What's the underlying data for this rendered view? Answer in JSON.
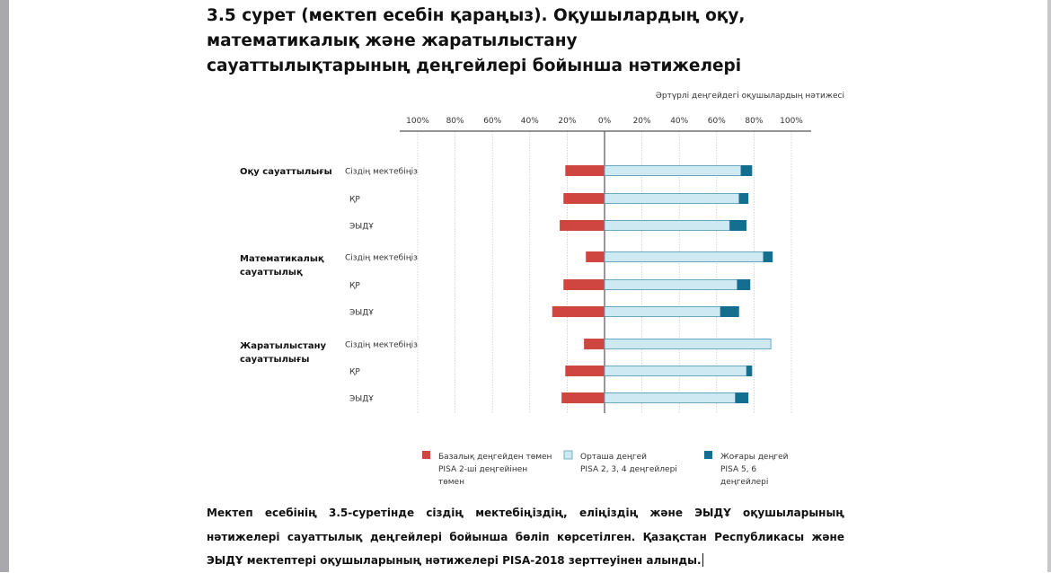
{
  "title_lines": [
    "3.5 сурет (мектеп есебін қараңыз). Оқушылардың оқу,",
    "математикалық және жаратылыстану",
    "сауаттылықтарының деңгейлері бойынша нәтижелері"
  ],
  "caption": "Мектеп есебінің 3.5-суретінде сіздің мектебіңіздің, еліңіздің және ЭЫДҰ оқушыларының нәтижелері сауаттылық деңгейлері бойынша бөліп көрсетілген. Қазақстан Республикасы және ЭЫДҰ мектептері оқушыларының нәтижелері PISA-2018 зерттеуінен алынды.",
  "chart_data": {
    "type": "bar",
    "orientation": "horizontal-diverging",
    "subtitle": "Әртүрлі деңгейдегі оқушылардың нәтижесі",
    "x_ticks": [
      "100%",
      "80%",
      "60%",
      "40%",
      "20%",
      "0%",
      "20%",
      "40%",
      "60%",
      "80%",
      "100%"
    ],
    "xlim": [
      -100,
      100
    ],
    "grid": true,
    "legend_position": "bottom",
    "groups": [
      {
        "label_lines": [
          "Оқу сауаттылығы"
        ],
        "rows": [
          {
            "label": "Сіздің мектебіңіз",
            "below_basic": 21,
            "middle": 73,
            "high": 6
          },
          {
            "label": "ҚР",
            "below_basic": 22,
            "middle": 72,
            "high": 5
          },
          {
            "label": "ЭЫДҰ",
            "below_basic": 24,
            "middle": 67,
            "high": 9
          }
        ]
      },
      {
        "label_lines": [
          "Математикалық",
          "сауаттылық"
        ],
        "rows": [
          {
            "label": "Сіздің мектебіңіз",
            "below_basic": 10,
            "middle": 85,
            "high": 5
          },
          {
            "label": "ҚР",
            "below_basic": 22,
            "middle": 71,
            "high": 7
          },
          {
            "label": "ЭЫДҰ",
            "below_basic": 28,
            "middle": 62,
            "high": 10
          }
        ]
      },
      {
        "label_lines": [
          "Жаратылыстану",
          "сауаттылығы"
        ],
        "rows": [
          {
            "label": "Сіздің мектебіңіз",
            "below_basic": 11,
            "middle": 89,
            "high": 0
          },
          {
            "label": "ҚР",
            "below_basic": 21,
            "middle": 76,
            "high": 3
          },
          {
            "label": "ЭЫДҰ",
            "below_basic": 23,
            "middle": 70,
            "high": 7
          }
        ]
      }
    ],
    "legend": [
      {
        "key": "below_basic",
        "color": "#cf4540",
        "lines": [
          "Базалық деңгейден төмен",
          "PISA 2-ші деңгейінен",
          "төмен"
        ]
      },
      {
        "key": "middle",
        "color": "#cfe9f3",
        "lines": [
          "Орташа деңгей",
          "PISA 2, 3, 4 деңгейлері"
        ]
      },
      {
        "key": "high",
        "color": "#136e90",
        "lines": [
          "Жоғары деңгей",
          "PISA 5, 6",
          "деңгейлері"
        ]
      }
    ],
    "colors": {
      "below_basic": "#cf4540",
      "middle": "#cfe9f3",
      "middle_stroke": "#5b9fbd",
      "high": "#136e90",
      "grid": "#c8c8c8",
      "axis": "#555555"
    }
  }
}
